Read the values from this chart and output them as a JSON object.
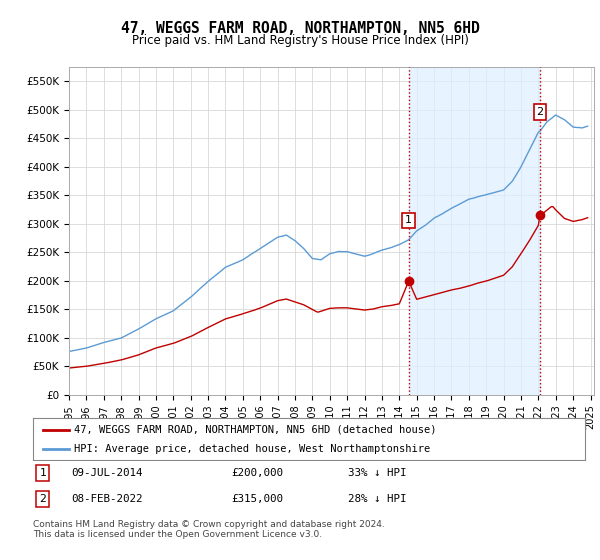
{
  "title": "47, WEGGS FARM ROAD, NORTHAMPTON, NN5 6HD",
  "subtitle": "Price paid vs. HM Land Registry's House Price Index (HPI)",
  "ylabel_ticks": [
    "£0",
    "£50K",
    "£100K",
    "£150K",
    "£200K",
    "£250K",
    "£300K",
    "£350K",
    "£400K",
    "£450K",
    "£500K",
    "£550K"
  ],
  "ytick_values": [
    0,
    50000,
    100000,
    150000,
    200000,
    250000,
    300000,
    350000,
    400000,
    450000,
    500000,
    550000
  ],
  "ylim": [
    0,
    575000
  ],
  "xlim_start": 1995.3,
  "xlim_end": 2025.2,
  "hpi_color": "#5b9bd5",
  "paid_color": "#c00000",
  "vline_color": "#c00000",
  "vline_style": ":",
  "grid_color": "#d8d8d8",
  "bg_color": "#ffffff",
  "span_color": "#ddeeff",
  "legend_label_paid": "47, WEGGS FARM ROAD, NORTHAMPTON, NN5 6HD (detached house)",
  "legend_label_hpi": "HPI: Average price, detached house, West Northamptonshire",
  "sale1_date": 2014.54,
  "sale1_price": 200000,
  "sale2_date": 2022.1,
  "sale2_price": 315000,
  "table_row1": [
    "1",
    "09-JUL-2014",
    "£200,000",
    "33% ↓ HPI"
  ],
  "table_row2": [
    "2",
    "08-FEB-2022",
    "£315,000",
    "28% ↓ HPI"
  ],
  "footnote": "Contains HM Land Registry data © Crown copyright and database right 2024.\nThis data is licensed under the Open Government Licence v3.0.",
  "title_fontsize": 10.5,
  "subtitle_fontsize": 8.5,
  "tick_fontsize": 7.5,
  "legend_fontsize": 7.5,
  "table_fontsize": 7.8,
  "footnote_fontsize": 6.5
}
